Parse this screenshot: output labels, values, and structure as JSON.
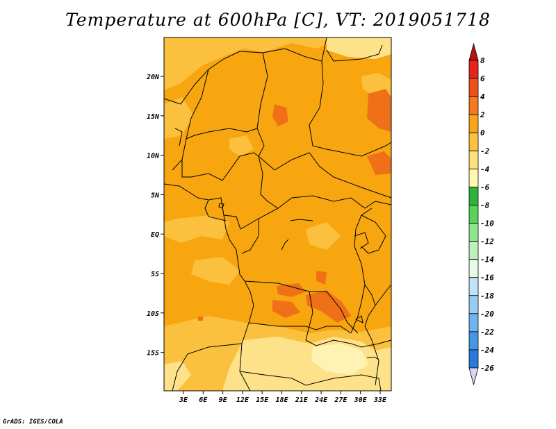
{
  "title": "Temperature at 600hPa [C], VT: 2019051718",
  "credit": "GrADS: IGES/COLA",
  "lat_labels": [
    "20N",
    "15N",
    "10N",
    "5N",
    "EQ",
    "5S",
    "10S",
    "15S"
  ],
  "lon_labels": [
    "3E",
    "6E",
    "9E",
    "12E",
    "15E",
    "18E",
    "21E",
    "24E",
    "27E",
    "30E",
    "33E"
  ],
  "colorbar": {
    "labels": [
      "8",
      "6",
      "4",
      "2",
      "0",
      "-2",
      "-4",
      "-6",
      "-8",
      "-10",
      "-12",
      "-14",
      "-16",
      "-18",
      "-20",
      "-22",
      "-24",
      "-26"
    ],
    "colors": [
      "#e8231c",
      "#f0501e",
      "#f57a1e",
      "#f8a51c",
      "#fbc140",
      "#fde17a",
      "#fff6b0",
      "#2db43c",
      "#5ad25a",
      "#8ee68c",
      "#bff0bc",
      "#e6fae6",
      "#bfe3f8",
      "#96cdf5",
      "#6eb4f0",
      "#4696e6",
      "#2a78dc",
      "#1656c8",
      "#0a32a0",
      "#0a146e"
    ],
    "arrow_top": "#b41414",
    "arrow_bottom": "#d7d7f5"
  },
  "map_colors": {
    "base": "#f7a60f",
    "warm": "#f07018",
    "mild": "#fbc13e",
    "cool": "#fde28a",
    "pale": "#fff3b4"
  }
}
